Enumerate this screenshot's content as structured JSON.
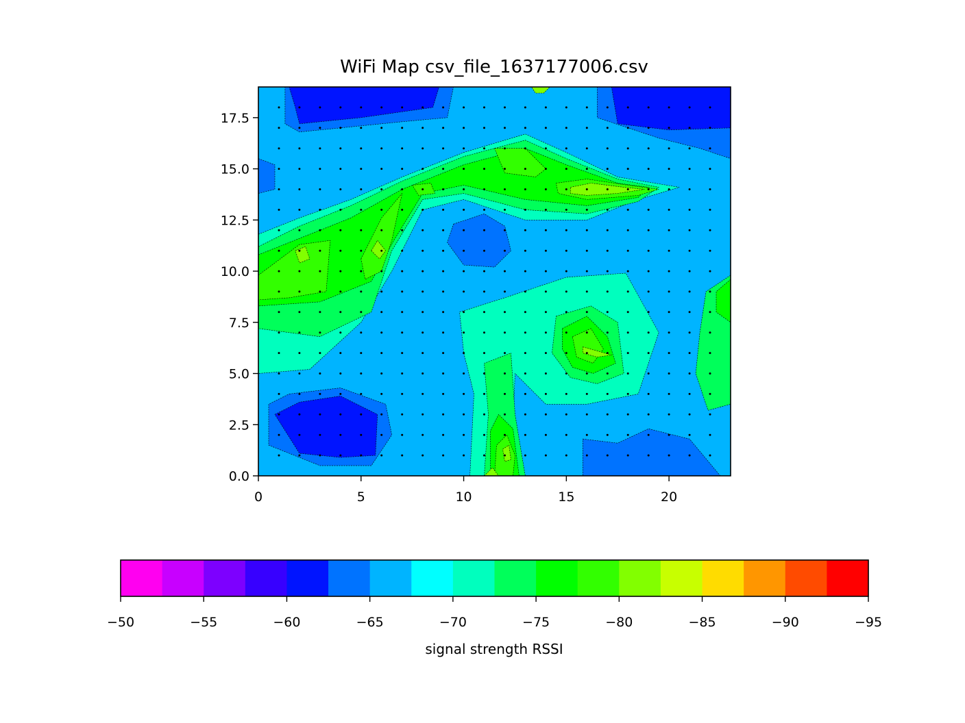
{
  "chart_data": {
    "type": "heatmap",
    "title": "WiFi Map csv_file_1637177006.csv",
    "xlabel": "",
    "ylabel": "",
    "xlim": [
      0,
      23
    ],
    "ylim": [
      0,
      19
    ],
    "x_ticks": [
      0,
      5,
      10,
      15,
      20
    ],
    "x_tick_labels": [
      "0",
      "5",
      "10",
      "15",
      "20"
    ],
    "y_ticks": [
      0.0,
      2.5,
      5.0,
      7.5,
      10.0,
      12.5,
      15.0,
      17.5
    ],
    "y_tick_labels": [
      "0.0",
      "2.5",
      "5.0",
      "7.5",
      "10.0",
      "12.5",
      "15.0",
      "17.5"
    ],
    "grid": false,
    "sample_grid": {
      "x_start": 1,
      "x_end": 22,
      "x_step": 1,
      "y_start": 1,
      "y_end": 18,
      "y_step": 1
    },
    "levels": [
      -50,
      -52.5,
      -55,
      -57.5,
      -60,
      -62.5,
      -65,
      -67.5,
      -70,
      -72.5,
      -75,
      -77.5,
      -80,
      -82.5,
      -85,
      -87.5,
      -90,
      -92.5,
      -95
    ],
    "level_colors": [
      "#ff00f0",
      "#c800ff",
      "#7d00ff",
      "#3700ff",
      "#0014ff",
      "#0073ff",
      "#00b4ff",
      "#00ffff",
      "#00ffbe",
      "#00ff5a",
      "#00ff00",
      "#32ff00",
      "#82ff00",
      "#c8ff00",
      "#ffdc00",
      "#ff9600",
      "#ff4b00",
      "#ff0000"
    ],
    "colorbar": {
      "label": "signal strength RSSI",
      "orientation": "horizontal",
      "placement": "bottom",
      "ticks": [
        -50,
        -55,
        -60,
        -65,
        -70,
        -75,
        -80,
        -85,
        -90,
        -95
      ],
      "tick_labels": [
        "−50",
        "−55",
        "−60",
        "−65",
        "−70",
        "−75",
        "−80",
        "−85",
        "−90",
        "−95"
      ]
    },
    "regions": [
      {
        "level": -62.5,
        "points": [
          [
            1.5,
            4
          ],
          [
            4,
            4.3
          ],
          [
            6.2,
            3.5
          ],
          [
            6.5,
            2
          ],
          [
            5.5,
            0.5
          ],
          [
            3,
            0.5
          ],
          [
            0.5,
            1.5
          ],
          [
            0.5,
            3.5
          ]
        ]
      },
      {
        "level": -60,
        "points": [
          [
            0.8,
            3
          ],
          [
            2,
            3.6
          ],
          [
            4,
            3.9
          ],
          [
            5.8,
            3
          ],
          [
            5.7,
            1
          ],
          [
            4,
            0.9
          ],
          [
            2,
            1.1
          ]
        ]
      },
      {
        "level": -62.5,
        "points": [
          [
            1.3,
            19
          ],
          [
            9.5,
            19
          ],
          [
            9.2,
            17.5
          ],
          [
            7,
            17.3
          ],
          [
            4,
            17
          ],
          [
            2,
            16.8
          ],
          [
            1.3,
            17.2
          ]
        ]
      },
      {
        "level": -60,
        "points": [
          [
            1.5,
            19
          ],
          [
            8.8,
            19
          ],
          [
            8.5,
            18
          ],
          [
            5,
            17.5
          ],
          [
            2,
            17.2
          ],
          [
            1.8,
            18
          ]
        ]
      },
      {
        "level": -62.5,
        "points": [
          [
            16.5,
            19
          ],
          [
            23,
            19
          ],
          [
            23,
            15.5
          ],
          [
            21.5,
            16
          ],
          [
            19.5,
            16.5
          ],
          [
            16.5,
            17.5
          ]
        ]
      },
      {
        "level": -60,
        "points": [
          [
            17.2,
            19
          ],
          [
            23,
            19
          ],
          [
            23,
            17
          ],
          [
            20,
            16.9
          ],
          [
            17.5,
            17.2
          ]
        ]
      },
      {
        "level": -62.5,
        "points": [
          [
            9.5,
            12.3
          ],
          [
            11,
            12.8
          ],
          [
            12,
            12.2
          ],
          [
            12.3,
            11
          ],
          [
            11.5,
            10.2
          ],
          [
            10,
            10.3
          ],
          [
            9.2,
            11.4
          ]
        ]
      },
      {
        "level": -62.5,
        "points": [
          [
            15.8,
            1.8
          ],
          [
            17.5,
            1.6
          ],
          [
            19,
            2.3
          ],
          [
            21,
            1.8
          ],
          [
            22.5,
            0
          ],
          [
            15.8,
            0
          ]
        ]
      },
      {
        "level": -62.5,
        "points": [
          [
            0,
            15.5
          ],
          [
            0.8,
            15.2
          ],
          [
            0.8,
            14
          ],
          [
            0,
            13.8
          ]
        ]
      },
      {
        "level": -70,
        "points": [
          [
            0,
            11.8
          ],
          [
            2,
            12.6
          ],
          [
            4.5,
            13.5
          ],
          [
            7,
            14.6
          ],
          [
            10,
            15.8
          ],
          [
            13,
            16.7
          ],
          [
            15,
            15.8
          ],
          [
            17.5,
            14.6
          ],
          [
            20.5,
            14.1
          ],
          [
            18.5,
            13.5
          ],
          [
            16,
            12.5
          ],
          [
            13,
            12.5
          ],
          [
            10,
            13.5
          ],
          [
            8,
            13
          ],
          [
            6.5,
            10
          ],
          [
            5,
            7.5
          ],
          [
            2.5,
            5.2
          ],
          [
            0,
            5
          ]
        ]
      },
      {
        "level": -70,
        "points": [
          [
            9.8,
            8
          ],
          [
            12,
            8.7
          ],
          [
            15,
            9.7
          ],
          [
            17.9,
            9.9
          ],
          [
            19.5,
            7
          ],
          [
            18.5,
            4
          ],
          [
            16,
            3.5
          ],
          [
            14,
            3.5
          ],
          [
            12.5,
            5
          ],
          [
            12.3,
            0
          ],
          [
            10.3,
            0
          ],
          [
            10.5,
            4
          ],
          [
            10,
            6
          ]
        ]
      },
      {
        "level": -72.5,
        "points": [
          [
            0,
            11.2
          ],
          [
            2,
            12.2
          ],
          [
            4.5,
            13.2
          ],
          [
            7,
            14.4
          ],
          [
            10,
            15.6
          ],
          [
            13,
            16.4
          ],
          [
            15,
            15.5
          ],
          [
            17.5,
            14.5
          ],
          [
            19.5,
            14.1
          ],
          [
            18.5,
            13.4
          ],
          [
            16,
            12.8
          ],
          [
            13,
            13
          ],
          [
            10,
            13.8
          ],
          [
            8,
            13.5
          ],
          [
            6.5,
            11
          ],
          [
            5.5,
            8
          ],
          [
            3,
            6.8
          ],
          [
            0,
            7.2
          ]
        ]
      },
      {
        "level": -72.5,
        "points": [
          [
            11,
            0
          ],
          [
            11.2,
            3
          ],
          [
            11,
            5.5
          ],
          [
            12.3,
            6
          ],
          [
            12.5,
            3
          ],
          [
            13,
            0
          ]
        ]
      },
      {
        "level": -72.5,
        "points": [
          [
            14.5,
            7.8
          ],
          [
            16.2,
            8.3
          ],
          [
            17.5,
            7.5
          ],
          [
            17.8,
            5
          ],
          [
            16.5,
            4.5
          ],
          [
            15.2,
            4.8
          ],
          [
            14.3,
            6
          ]
        ]
      },
      {
        "level": -72.5,
        "points": [
          [
            23,
            9.8
          ],
          [
            21.8,
            9
          ],
          [
            21.5,
            7
          ],
          [
            21.3,
            5
          ],
          [
            21.9,
            3.2
          ],
          [
            23,
            3.5
          ]
        ]
      },
      {
        "level": -75,
        "points": [
          [
            0,
            10.8
          ],
          [
            2,
            11.6
          ],
          [
            4.5,
            12.6
          ],
          [
            7,
            14
          ],
          [
            10,
            15.2
          ],
          [
            13,
            16
          ],
          [
            15,
            15.2
          ],
          [
            17.5,
            14.3
          ],
          [
            19,
            14.1
          ],
          [
            18.5,
            13.6
          ],
          [
            16,
            13.2
          ],
          [
            13,
            13.5
          ],
          [
            10,
            14.2
          ],
          [
            8,
            13.8
          ],
          [
            6.6,
            11.5
          ],
          [
            5.5,
            9.5
          ],
          [
            3,
            8.5
          ],
          [
            0,
            8.3
          ]
        ]
      },
      {
        "level": -75,
        "points": [
          [
            11.3,
            0
          ],
          [
            11.3,
            2.2
          ],
          [
            11.7,
            3
          ],
          [
            12.4,
            2.3
          ],
          [
            12.7,
            0
          ]
        ]
      },
      {
        "level": -75,
        "points": [
          [
            14.8,
            7.2
          ],
          [
            16,
            7.8
          ],
          [
            17,
            6.8
          ],
          [
            17.4,
            5.5
          ],
          [
            16.3,
            5
          ],
          [
            15.3,
            5.3
          ],
          [
            14.8,
            6.2
          ]
        ]
      },
      {
        "level": -75,
        "points": [
          [
            23,
            9.6
          ],
          [
            22.3,
            9
          ],
          [
            22.3,
            8
          ],
          [
            23,
            7.5
          ]
        ]
      },
      {
        "level": -77.5,
        "points": [
          [
            0,
            9.8
          ],
          [
            2,
            11.3
          ],
          [
            3.5,
            11.5
          ],
          [
            3.3,
            9
          ],
          [
            1.5,
            8.7
          ],
          [
            0,
            8.6
          ]
        ]
      },
      {
        "level": -77.5,
        "points": [
          [
            5,
            10.6
          ],
          [
            6,
            12.6
          ],
          [
            7,
            13.8
          ],
          [
            6.5,
            11.5
          ],
          [
            6,
            10
          ],
          [
            5.2,
            9.6
          ]
        ]
      },
      {
        "level": -77.5,
        "points": [
          [
            11.5,
            16
          ],
          [
            13,
            16
          ],
          [
            14,
            15
          ],
          [
            13.5,
            14.6
          ],
          [
            12,
            14.8
          ]
        ]
      },
      {
        "level": -77.5,
        "points": [
          [
            14.5,
            14.3
          ],
          [
            16,
            14.5
          ],
          [
            18,
            14.2
          ],
          [
            19.5,
            14
          ],
          [
            18.5,
            13.7
          ],
          [
            16,
            13.5
          ],
          [
            14.6,
            13.8
          ]
        ]
      },
      {
        "level": -77.5,
        "points": [
          [
            7.5,
            14.2
          ],
          [
            8.4,
            14.3
          ],
          [
            8.6,
            13.8
          ],
          [
            7.8,
            13.7
          ]
        ]
      },
      {
        "level": -77.5,
        "points": [
          [
            11.5,
            0
          ],
          [
            11.6,
            1.5
          ],
          [
            12.1,
            2
          ],
          [
            12.5,
            1
          ],
          [
            12.4,
            0
          ]
        ]
      },
      {
        "level": -77.5,
        "points": [
          [
            15.3,
            6.8
          ],
          [
            16.2,
            7.2
          ],
          [
            16.8,
            6.2
          ],
          [
            16.3,
            5.5
          ],
          [
            15.5,
            5.8
          ]
        ]
      },
      {
        "level": -80,
        "points": [
          [
            1.8,
            11
          ],
          [
            2.3,
            11.2
          ],
          [
            2.5,
            10.6
          ],
          [
            2,
            10.4
          ]
        ]
      },
      {
        "level": -80,
        "points": [
          [
            5.5,
            11
          ],
          [
            5.8,
            11.5
          ],
          [
            6.2,
            11
          ],
          [
            5.9,
            10.6
          ]
        ]
      },
      {
        "level": -80,
        "points": [
          [
            15.2,
            14.1
          ],
          [
            16.2,
            14.3
          ],
          [
            17.8,
            14.1
          ],
          [
            18.8,
            14
          ],
          [
            17.5,
            13.8
          ],
          [
            16,
            13.7
          ],
          [
            15.2,
            13.8
          ]
        ]
      },
      {
        "level": -80,
        "points": [
          [
            15.8,
            6.3
          ],
          [
            16.5,
            6.1
          ],
          [
            17.2,
            5.9
          ],
          [
            16.5,
            5.8
          ],
          [
            15.8,
            6
          ]
        ]
      },
      {
        "level": -80,
        "points": [
          [
            11.9,
            1.3
          ],
          [
            12.2,
            1.5
          ],
          [
            12.3,
            0.8
          ],
          [
            12,
            0.7
          ]
        ]
      },
      {
        "level": -80,
        "points": [
          [
            11,
            0
          ],
          [
            11.4,
            0.4
          ],
          [
            11.7,
            0
          ]
        ]
      },
      {
        "level": -80,
        "points": [
          [
            13.3,
            19
          ],
          [
            14.2,
            19
          ],
          [
            13.9,
            18.7
          ],
          [
            13.5,
            18.7
          ]
        ]
      }
    ]
  }
}
